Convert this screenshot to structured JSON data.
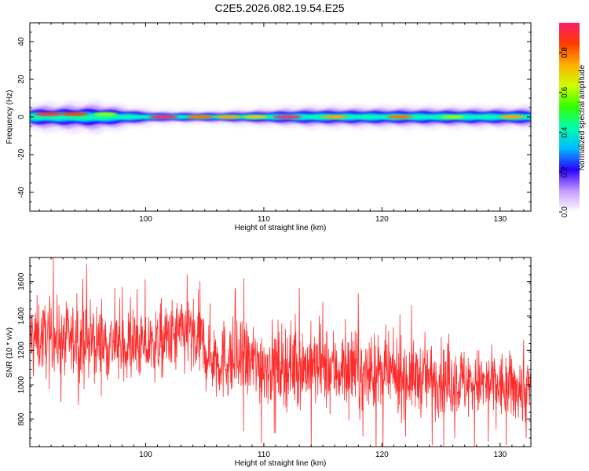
{
  "title": "C2E5.2026.082.19.54.E25",
  "chart_data": [
    {
      "type": "heatmap",
      "xlabel": "Height of straight line (km)",
      "ylabel": "Frequency (Hz)",
      "xlim": [
        90.2,
        132.6
      ],
      "ylim": [
        -50,
        50
      ],
      "xticks": [
        100,
        110,
        120,
        130
      ],
      "yticks": [
        -40,
        -20,
        0,
        20,
        40
      ],
      "band_center_hz": 0,
      "band_halfwidth_hz": [
        {
          "x": 90.2,
          "halfwidth": 3
        },
        {
          "x": 96.0,
          "halfwidth": 3.5
        },
        {
          "x": 99.5,
          "halfwidth": 2
        },
        {
          "x": 101.0,
          "halfwidth": 1.5
        },
        {
          "x": 106.0,
          "halfwidth": 1.5
        },
        {
          "x": 110.0,
          "halfwidth": 2
        },
        {
          "x": 114.0,
          "halfwidth": 2.5
        },
        {
          "x": 132.6,
          "halfwidth": 2.5
        }
      ],
      "hotspots": [
        {
          "x": 91.8,
          "y": 1.5,
          "amplitude": 0.9
        },
        {
          "x": 94.0,
          "y": 1.5,
          "amplitude": 0.85
        },
        {
          "x": 96.6,
          "y": 1.5,
          "amplitude": 0.6
        },
        {
          "x": 101.5,
          "y": 0,
          "amplitude": 0.95
        },
        {
          "x": 104.6,
          "y": 0,
          "amplitude": 0.8
        },
        {
          "x": 107.0,
          "y": 0,
          "amplitude": 0.75
        },
        {
          "x": 109.3,
          "y": 0,
          "amplitude": 0.7
        },
        {
          "x": 112.0,
          "y": 0,
          "amplitude": 0.95
        },
        {
          "x": 116.0,
          "y": 0,
          "amplitude": 0.75
        },
        {
          "x": 121.5,
          "y": 0,
          "amplitude": 0.8
        },
        {
          "x": 126.0,
          "y": 0,
          "amplitude": 0.6
        },
        {
          "x": 131.0,
          "y": 0,
          "amplitude": 0.75
        }
      ],
      "colorbar": {
        "label": "Normalized spectral amplitude",
        "range": [
          0.0,
          0.95
        ],
        "ticks": [
          "0.0",
          "0.2",
          "0.4",
          "0.6",
          "0.8"
        ],
        "tick_values": [
          0.0,
          0.2,
          0.4,
          0.6,
          0.8
        ]
      },
      "colormap": [
        "#ffffff",
        "#c59bff",
        "#2b00ff",
        "#00b7ff",
        "#00ffb0",
        "#33ff00",
        "#ccff00",
        "#ffb000",
        "#ff3b00",
        "#ff1b6b"
      ]
    },
    {
      "type": "line",
      "xlabel": "Height of straight line (km)",
      "ylabel": "SNR (10 * v/v)",
      "xlim": [
        90.2,
        132.6
      ],
      "ylim": [
        640,
        1740
      ],
      "xticks": [
        100,
        110,
        120,
        130
      ],
      "yticks": [
        800,
        1000,
        1200,
        1400,
        1600
      ],
      "color": "#ff2a2a",
      "trend": [
        {
          "x": 90.2,
          "mean": 1280,
          "spread": 120
        },
        {
          "x": 95.0,
          "mean": 1250,
          "spread": 120
        },
        {
          "x": 100.0,
          "mean": 1220,
          "spread": 110
        },
        {
          "x": 103.5,
          "mean": 1300,
          "spread": 130
        },
        {
          "x": 106.0,
          "mean": 1150,
          "spread": 130
        },
        {
          "x": 110.0,
          "mean": 1120,
          "spread": 130
        },
        {
          "x": 115.0,
          "mean": 1100,
          "spread": 130
        },
        {
          "x": 120.0,
          "mean": 1060,
          "spread": 120
        },
        {
          "x": 125.0,
          "mean": 1030,
          "spread": 115
        },
        {
          "x": 130.0,
          "mean": 990,
          "spread": 110
        },
        {
          "x": 132.6,
          "mean": 970,
          "spread": 110
        }
      ],
      "peaks": [
        {
          "x": 92.2,
          "y": 1740
        },
        {
          "x": 95.0,
          "y": 1700
        },
        {
          "x": 98.7,
          "y": 1510
        },
        {
          "x": 103.5,
          "y": 1640
        },
        {
          "x": 104.6,
          "y": 1600
        },
        {
          "x": 107.6,
          "y": 1560
        },
        {
          "x": 108.3,
          "y": 1620
        },
        {
          "x": 113.0,
          "y": 1560
        },
        {
          "x": 115.0,
          "y": 1480
        },
        {
          "x": 118.0,
          "y": 1530
        },
        {
          "x": 122.5,
          "y": 1460
        },
        {
          "x": 129.0,
          "y": 1490
        },
        {
          "x": 132.0,
          "y": 1260
        }
      ],
      "troughs": [
        {
          "x": 109.8,
          "y": 660
        },
        {
          "x": 111.0,
          "y": 720
        },
        {
          "x": 118.4,
          "y": 700
        },
        {
          "x": 122.0,
          "y": 700
        },
        {
          "x": 129.0,
          "y": 670
        },
        {
          "x": 130.5,
          "y": 650
        },
        {
          "x": 132.2,
          "y": 690
        }
      ]
    }
  ]
}
